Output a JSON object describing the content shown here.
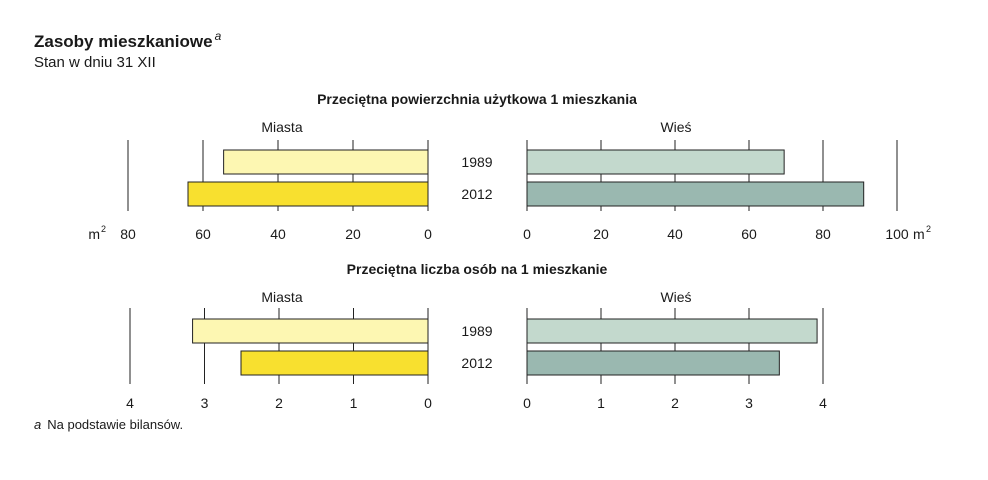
{
  "header": {
    "title": "Zasoby mieszkaniowe",
    "title_marker": "a",
    "subtitle": "Stan w dniu 31 XII"
  },
  "footnote": {
    "marker": "a",
    "text": "Na podstawie bilansów."
  },
  "chart_data": [
    {
      "type": "bar",
      "orientation": "horizontal-butterfly",
      "title": "Przeciętna powierzchnia użytkowa 1 mieszkania",
      "categories": [
        "1989",
        "2012"
      ],
      "left_panel_label": "Miasta",
      "right_panel_label": "Wieś",
      "series": [
        {
          "name": "Miasta",
          "values": [
            54.5,
            64.0
          ]
        },
        {
          "name": "Wieś",
          "values": [
            69.5,
            91.0
          ]
        }
      ],
      "left_axis": {
        "max": 80,
        "ticks": [
          80,
          60,
          40,
          20,
          0
        ],
        "unit_base": "m",
        "unit_exp": "2"
      },
      "right_axis": {
        "max": 100,
        "ticks": [
          0,
          20,
          40,
          60,
          80,
          100
        ],
        "unit_base": "m",
        "unit_exp": "2"
      },
      "colors": {
        "left_1989": "#fdf7b2",
        "left_2012": "#f8e02f",
        "right_1989": "#c3d9cd",
        "right_2012": "#9ab8b0"
      }
    },
    {
      "type": "bar",
      "orientation": "horizontal-butterfly",
      "title": "Przeciętna liczba osób na 1 mieszkanie",
      "categories": [
        "1989",
        "2012"
      ],
      "left_panel_label": "Miasta",
      "right_panel_label": "Wieś",
      "series": [
        {
          "name": "Miasta",
          "values": [
            3.16,
            2.51
          ]
        },
        {
          "name": "Wieś",
          "values": [
            3.92,
            3.41
          ]
        }
      ],
      "left_axis": {
        "max": 4,
        "ticks": [
          4,
          3,
          2,
          1,
          0
        ]
      },
      "right_axis": {
        "max": 4,
        "ticks": [
          0,
          1,
          2,
          3,
          4
        ]
      },
      "colors": {
        "left_1989": "#fdf7b2",
        "left_2012": "#f8e02f",
        "right_1989": "#c3d9cd",
        "right_2012": "#9ab8b0"
      }
    }
  ]
}
